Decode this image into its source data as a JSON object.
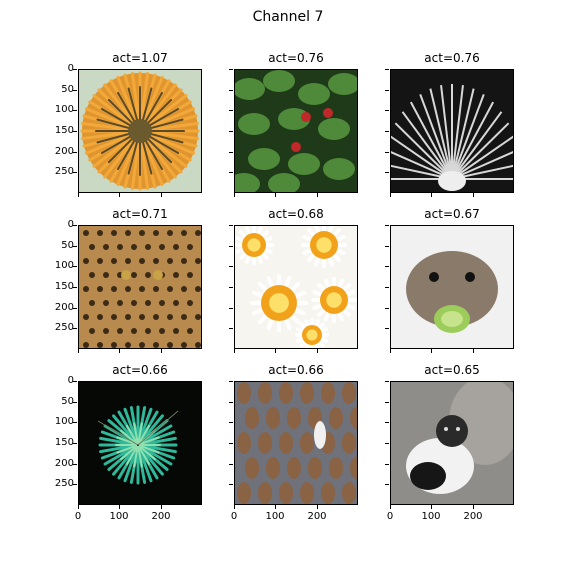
{
  "figure": {
    "title": "Channel 7"
  },
  "chart_data": {
    "type": "image-grid",
    "title": "Channel 7",
    "xticks": [
      "0",
      "100",
      "200"
    ],
    "yticks": [
      "0",
      "50",
      "100",
      "150",
      "200",
      "250"
    ],
    "panels": [
      {
        "title": "act=1.07",
        "act": 1.07,
        "image": "orange-spiky-flower"
      },
      {
        "title": "act=0.76",
        "act": 0.76,
        "image": "strawberry-plant"
      },
      {
        "title": "act=0.76",
        "act": 0.76,
        "image": "white-peacock"
      },
      {
        "title": "act=0.71",
        "act": 0.71,
        "image": "leopard"
      },
      {
        "title": "act=0.68",
        "act": 0.68,
        "image": "daisies"
      },
      {
        "title": "act=0.67",
        "act": 0.67,
        "image": "hamster-with-cucumber"
      },
      {
        "title": "act=0.66",
        "act": 0.66,
        "image": "green-spiky-plant"
      },
      {
        "title": "act=0.66",
        "act": 0.66,
        "image": "king-penguins"
      },
      {
        "title": "act=0.65",
        "act": 0.65,
        "image": "cat-and-kitten"
      }
    ]
  }
}
